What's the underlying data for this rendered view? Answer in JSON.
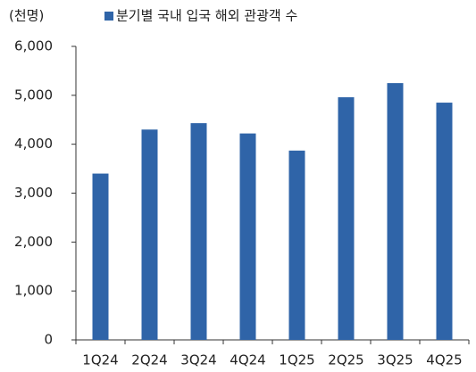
{
  "chart_data": {
    "type": "bar",
    "unit_label": "(천명)",
    "categories": [
      "1Q24",
      "2Q24",
      "3Q24",
      "4Q24",
      "1Q25",
      "2Q25",
      "3Q25",
      "4Q25"
    ],
    "series": [
      {
        "name": "분기별 국내 입국 해외 관광객 수",
        "color": "#2f64a8",
        "values": [
          3400,
          4300,
          4430,
          4220,
          3870,
          4960,
          5250,
          4850
        ]
      }
    ],
    "ylim": [
      0,
      6000
    ],
    "yticks": [
      0,
      {
        "value": 1000,
        "label": "1,000"
      },
      {
        "value": 2000,
        "label": "2,000"
      },
      {
        "value": 3000,
        "label": "3,000"
      },
      {
        "value": 4000,
        "label": "4,000"
      },
      {
        "value": 5000,
        "label": "5,000"
      },
      {
        "value": 6000,
        "label": "6,000"
      }
    ],
    "grid": false,
    "legend": "top"
  }
}
